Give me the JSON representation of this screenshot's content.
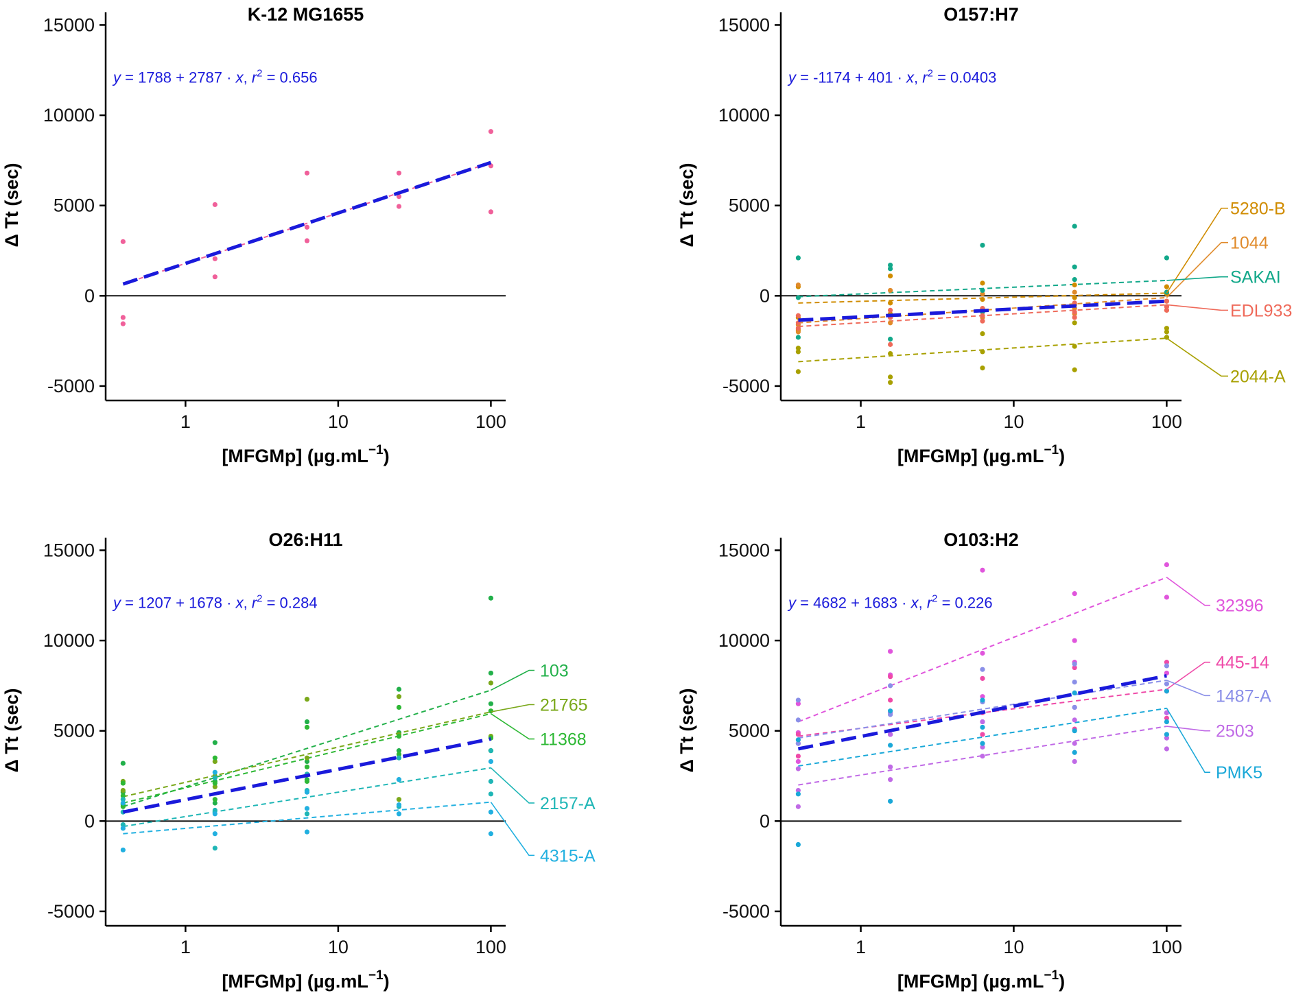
{
  "figure": {
    "colors": {
      "pooled_fit": "#1a1adb",
      "axis": "#000000",
      "equation_text": "#1a1adb"
    }
  },
  "chart_data": [
    {
      "type": "scatter",
      "title": "K-12 MG1655",
      "xlabel": "[MFGMp] (µg.mL",
      "xlabel_sup": "−1",
      "xlabel_close": ")",
      "ylabel": "Δ Tt (sec)",
      "xscale": "log10",
      "xlim": [
        0.3,
        125
      ],
      "ylim": [
        -5800,
        15700
      ],
      "x_ticks": [
        {
          "v": 1,
          "label": "1"
        },
        {
          "v": 10,
          "label": "10"
        },
        {
          "v": 100,
          "label": "100"
        }
      ],
      "y_ticks": [
        {
          "v": -5000,
          "label": "-5000"
        },
        {
          "v": 0,
          "label": "0"
        },
        {
          "v": 5000,
          "label": "5000"
        },
        {
          "v": 10000,
          "label": "10000"
        },
        {
          "v": 15000,
          "label": "15000"
        }
      ],
      "equation": {
        "y_txt": "y",
        "eq_txt": " = 1788 + 2787 · ",
        "x_txt": "x",
        "sep_txt": ",  ",
        "r_txt": "r",
        "r_sup": "2",
        "r_val": " = 0.656"
      },
      "pooled_fit": {
        "x": [
          0.39,
          100
        ],
        "y": [
          650,
          7380
        ]
      },
      "series": [
        {
          "name": "",
          "color": "#f0609a",
          "x": [
            0.39,
            0.39,
            0.39,
            1.56,
            1.56,
            1.56,
            6.25,
            6.25,
            6.25,
            25,
            25,
            25,
            100,
            100,
            100
          ],
          "y": [
            3000,
            -1200,
            -1550,
            5050,
            2050,
            1050,
            6800,
            3800,
            3050,
            6800,
            5500,
            4950,
            9100,
            7200,
            4650
          ],
          "fit": {
            "x": [
              0.39,
              100
            ],
            "y": [
              650,
              7380
            ]
          }
        }
      ]
    },
    {
      "type": "scatter",
      "title": "O157:H7",
      "xlabel": "[MFGMp] (µg.mL",
      "xlabel_sup": "−1",
      "xlabel_close": ")",
      "ylabel": "Δ Tt (sec)",
      "xscale": "log10",
      "xlim": [
        0.3,
        125
      ],
      "ylim": [
        -5800,
        15700
      ],
      "x_ticks": [
        {
          "v": 1,
          "label": "1"
        },
        {
          "v": 10,
          "label": "10"
        },
        {
          "v": 100,
          "label": "100"
        }
      ],
      "y_ticks": [
        {
          "v": -5000,
          "label": "-5000"
        },
        {
          "v": 0,
          "label": "0"
        },
        {
          "v": 5000,
          "label": "5000"
        },
        {
          "v": 10000,
          "label": "10000"
        },
        {
          "v": 15000,
          "label": "15000"
        }
      ],
      "equation": {
        "y_txt": "y",
        "eq_txt": " = -1174 + 401 · ",
        "x_txt": "x",
        "sep_txt": ",  ",
        "r_txt": "r",
        "r_sup": "2",
        "r_val": " = 0.0403"
      },
      "pooled_fit": {
        "x": [
          0.39,
          100
        ],
        "y": [
          -1350,
          -300
        ]
      },
      "series": [
        {
          "name": "5280-B",
          "color": "#d08c00",
          "x": [
            0.39,
            0.39,
            0.39,
            1.56,
            1.56,
            1.56,
            6.25,
            6.25,
            6.25,
            25,
            25,
            25,
            100,
            100,
            100
          ],
          "y": [
            500,
            -1200,
            -1900,
            1100,
            -400,
            -1000,
            700,
            -200,
            -700,
            600,
            -100,
            -500,
            500,
            100,
            -300
          ],
          "fit": {
            "x": [
              0.39,
              100
            ],
            "y": [
              -400,
              150
            ]
          },
          "label_y": 4850
        },
        {
          "name": "1044",
          "color": "#e08a2a",
          "x": [
            0.39,
            0.39,
            0.39,
            1.56,
            1.56,
            1.56,
            6.25,
            6.25,
            6.25,
            25,
            25,
            25,
            100,
            100,
            100
          ],
          "y": [
            600,
            -1600,
            -2000,
            300,
            -1200,
            -1500,
            100,
            -900,
            -1200,
            200,
            -700,
            -1000,
            200,
            -600,
            -800
          ],
          "fit": {
            "x": [
              0.39,
              100
            ],
            "y": [
              -1500,
              -100
            ]
          },
          "label_y": 2950
        },
        {
          "name": "SAKAI",
          "color": "#12a88a",
          "x": [
            0.39,
            0.39,
            0.39,
            1.56,
            1.56,
            1.56,
            6.25,
            6.25,
            6.25,
            25,
            25,
            25,
            100,
            100,
            100
          ],
          "y": [
            2100,
            -100,
            -2300,
            1700,
            1500,
            -2400,
            2800,
            300,
            -900,
            3850,
            1600,
            900,
            2100,
            200,
            -2300
          ],
          "fit": {
            "x": [
              0.39,
              100
            ],
            "y": [
              -50,
              850
            ]
          },
          "label_y": 1050
        },
        {
          "name": "EDL933",
          "color": "#ef6a5a",
          "x": [
            0.39,
            0.39,
            0.39,
            1.56,
            1.56,
            1.56,
            6.25,
            6.25,
            6.25,
            25,
            25,
            25,
            100,
            100,
            100
          ],
          "y": [
            -1100,
            -1500,
            -1800,
            -800,
            -1200,
            -2700,
            -700,
            -1100,
            -1400,
            -400,
            -900,
            -1200,
            -300,
            -600,
            -800
          ],
          "fit": {
            "x": [
              0.39,
              100
            ],
            "y": [
              -1700,
              -500
            ]
          },
          "label_y": -800
        },
        {
          "name": "2044-A",
          "color": "#a8a000",
          "x": [
            0.39,
            0.39,
            0.39,
            1.56,
            1.56,
            1.56,
            6.25,
            6.25,
            6.25,
            25,
            25,
            25,
            100,
            100,
            100
          ],
          "y": [
            -2900,
            -3100,
            -4200,
            -4500,
            -4800,
            -3200,
            -2100,
            -3100,
            -4000,
            -1500,
            -2800,
            -4100,
            -1800,
            -2000,
            -2300
          ],
          "fit": {
            "x": [
              0.39,
              100
            ],
            "y": [
              -3650,
              -2350
            ]
          },
          "label_y": -4450
        }
      ]
    },
    {
      "type": "scatter",
      "title": "O26:H11",
      "xlabel": "[MFGMp] (µg.mL",
      "xlabel_sup": "−1",
      "xlabel_close": ")",
      "ylabel": "Δ Tt (sec)",
      "xscale": "log10",
      "xlim": [
        0.3,
        125
      ],
      "ylim": [
        -5800,
        15700
      ],
      "x_ticks": [
        {
          "v": 1,
          "label": "1"
        },
        {
          "v": 10,
          "label": "10"
        },
        {
          "v": 100,
          "label": "100"
        }
      ],
      "y_ticks": [
        {
          "v": -5000,
          "label": "-5000"
        },
        {
          "v": 0,
          "label": "0"
        },
        {
          "v": 5000,
          "label": "5000"
        },
        {
          "v": 10000,
          "label": "10000"
        },
        {
          "v": 15000,
          "label": "15000"
        }
      ],
      "equation": {
        "y_txt": "y",
        "eq_txt": " = 1207 + 1678 · ",
        "x_txt": "x",
        "sep_txt": ",  ",
        "r_txt": "r",
        "r_sup": "2",
        "r_val": " = 0.284"
      },
      "pooled_fit": {
        "x": [
          0.39,
          100
        ],
        "y": [
          500,
          4550
        ]
      },
      "series": [
        {
          "name": "103",
          "color": "#22b04a",
          "x": [
            0.39,
            0.39,
            0.39,
            1.56,
            1.56,
            1.56,
            6.25,
            6.25,
            6.25,
            25,
            25,
            25,
            100,
            100,
            100
          ],
          "y": [
            3200,
            1600,
            900,
            4350,
            2200,
            1000,
            5500,
            3300,
            2300,
            7300,
            4900,
            3900,
            12350,
            8200,
            6500
          ],
          "fit": {
            "x": [
              0.39,
              100
            ],
            "y": [
              800,
              7250
            ]
          },
          "label_y": 8350
        },
        {
          "name": "21765",
          "color": "#7aa81a",
          "x": [
            0.39,
            0.39,
            0.39,
            1.56,
            1.56,
            1.56,
            6.25,
            6.25,
            6.25,
            25,
            25,
            25,
            100,
            100,
            100
          ],
          "y": [
            2200,
            1700,
            1000,
            3300,
            2500,
            1900,
            6750,
            3500,
            2600,
            6900,
            4800,
            1200,
            7650,
            4700,
            3900
          ],
          "fit": {
            "x": [
              0.39,
              100
            ],
            "y": [
              1350,
              6050
            ]
          },
          "label_y": 6450
        },
        {
          "name": "11368",
          "color": "#2eb835",
          "x": [
            0.39,
            0.39,
            0.39,
            1.56,
            1.56,
            1.56,
            6.25,
            6.25,
            6.25,
            25,
            25,
            25,
            100,
            100,
            100
          ],
          "y": [
            2100,
            1400,
            800,
            3500,
            2100,
            1200,
            5200,
            3000,
            2200,
            6300,
            4700,
            3700,
            6100,
            4600,
            3900
          ],
          "fit": {
            "x": [
              0.39,
              100
            ],
            "y": [
              1000,
              5950
            ]
          },
          "label_y": 4550
        },
        {
          "name": "2157-A",
          "color": "#1fb6b6",
          "x": [
            0.39,
            0.39,
            0.39,
            1.56,
            1.56,
            1.56,
            6.25,
            6.25,
            6.25,
            25,
            25,
            25,
            100,
            100,
            100
          ],
          "y": [
            1200,
            500,
            -200,
            2400,
            600,
            -1500,
            2600,
            1700,
            400,
            3500,
            2300,
            800,
            3900,
            2200,
            1500
          ],
          "fit": {
            "x": [
              0.39,
              100
            ],
            "y": [
              -300,
              2950
            ]
          },
          "label_y": 1000
        },
        {
          "name": "4315-A",
          "color": "#22b0e0",
          "x": [
            0.39,
            0.39,
            0.39,
            1.56,
            1.56,
            1.56,
            6.25,
            6.25,
            6.25,
            25,
            25,
            25,
            100,
            100,
            100
          ],
          "y": [
            1000,
            -400,
            -1600,
            2700,
            400,
            -700,
            1600,
            700,
            -600,
            2300,
            900,
            400,
            3300,
            500,
            -700
          ],
          "fit": {
            "x": [
              0.39,
              100
            ],
            "y": [
              -700,
              1050
            ]
          },
          "label_y": -1900
        }
      ]
    },
    {
      "type": "scatter",
      "title": "O103:H2",
      "xlabel": "[MFGMp] (µg.mL",
      "xlabel_sup": "−1",
      "xlabel_close": ")",
      "ylabel": "Δ Tt (sec)",
      "xscale": "log10",
      "xlim": [
        0.3,
        125
      ],
      "ylim": [
        -5800,
        15700
      ],
      "x_ticks": [
        {
          "v": 1,
          "label": "1"
        },
        {
          "v": 10,
          "label": "10"
        },
        {
          "v": 100,
          "label": "100"
        }
      ],
      "y_ticks": [
        {
          "v": -5000,
          "label": "-5000"
        },
        {
          "v": 0,
          "label": "0"
        },
        {
          "v": 5000,
          "label": "5000"
        },
        {
          "v": 10000,
          "label": "10000"
        },
        {
          "v": 15000,
          "label": "15000"
        }
      ],
      "equation": {
        "y_txt": "y",
        "eq_txt": " = 4682 + 1683 · ",
        "x_txt": "x",
        "sep_txt": ",  ",
        "r_txt": "r",
        "r_sup": "2",
        "r_val": " = 0.226"
      },
      "pooled_fit": {
        "x": [
          0.39,
          100
        ],
        "y": [
          4000,
          8050
        ]
      },
      "series": [
        {
          "name": "32396",
          "color": "#e055dc",
          "x": [
            0.39,
            0.39,
            0.39,
            1.56,
            1.56,
            1.56,
            6.25,
            6.25,
            6.25,
            25,
            25,
            25,
            100,
            100,
            100
          ],
          "y": [
            6500,
            4900,
            3300,
            9400,
            8100,
            6000,
            13900,
            9300,
            6900,
            12600,
            10000,
            8800,
            14200,
            12400,
            8200
          ],
          "fit": {
            "x": [
              0.39,
              100
            ],
            "y": [
              5500,
              13500
            ]
          },
          "label_y": 11950
        },
        {
          "name": "445-14",
          "color": "#ef4aa8",
          "x": [
            0.39,
            0.39,
            0.39,
            1.56,
            1.56,
            1.56,
            6.25,
            6.25,
            6.25,
            25,
            25,
            25,
            100,
            100,
            100
          ],
          "y": [
            4800,
            4300,
            3600,
            8000,
            6700,
            4800,
            7900,
            6000,
            4800,
            8500,
            6300,
            5100,
            8800,
            7200,
            5700
          ],
          "fit": {
            "x": [
              0.39,
              100
            ],
            "y": [
              4700,
              7300
            ]
          },
          "label_y": 8800
        },
        {
          "name": "1487-A",
          "color": "#8a8fe8",
          "x": [
            0.39,
            0.39,
            0.39,
            1.56,
            1.56,
            1.56,
            6.25,
            6.25,
            6.25,
            25,
            25,
            25,
            100,
            100,
            100
          ],
          "y": [
            6700,
            5600,
            4300,
            7500,
            5900,
            4800,
            8400,
            6600,
            5500,
            8700,
            7700,
            6300,
            8600,
            7600,
            6000
          ],
          "fit": {
            "x": [
              0.39,
              100
            ],
            "y": [
              4600,
              7800
            ]
          },
          "label_y": 6950
        },
        {
          "name": "2503",
          "color": "#c06ae6",
          "x": [
            0.39,
            0.39,
            0.39,
            1.56,
            1.56,
            1.56,
            6.25,
            6.25,
            6.25,
            25,
            25,
            25,
            100,
            100,
            100
          ],
          "y": [
            2900,
            1700,
            800,
            4800,
            3000,
            2300,
            5500,
            4100,
            3600,
            5600,
            4300,
            3300,
            6000,
            4600,
            4000
          ],
          "fit": {
            "x": [
              0.39,
              100
            ],
            "y": [
              2000,
              5250
            ]
          },
          "label_y": 5000
        },
        {
          "name": "PMK5",
          "color": "#1aa8d8",
          "x": [
            0.39,
            0.39,
            0.39,
            1.56,
            1.56,
            1.56,
            6.25,
            6.25,
            6.25,
            25,
            25,
            25,
            100,
            100,
            100
          ],
          "y": [
            4500,
            1500,
            -1300,
            6100,
            4200,
            1100,
            6700,
            5200,
            4300,
            7100,
            5000,
            3800,
            7200,
            5500,
            4800
          ],
          "fit": {
            "x": [
              0.39,
              100
            ],
            "y": [
              3050,
              6250
            ]
          },
          "label_y": 2700
        }
      ]
    }
  ]
}
